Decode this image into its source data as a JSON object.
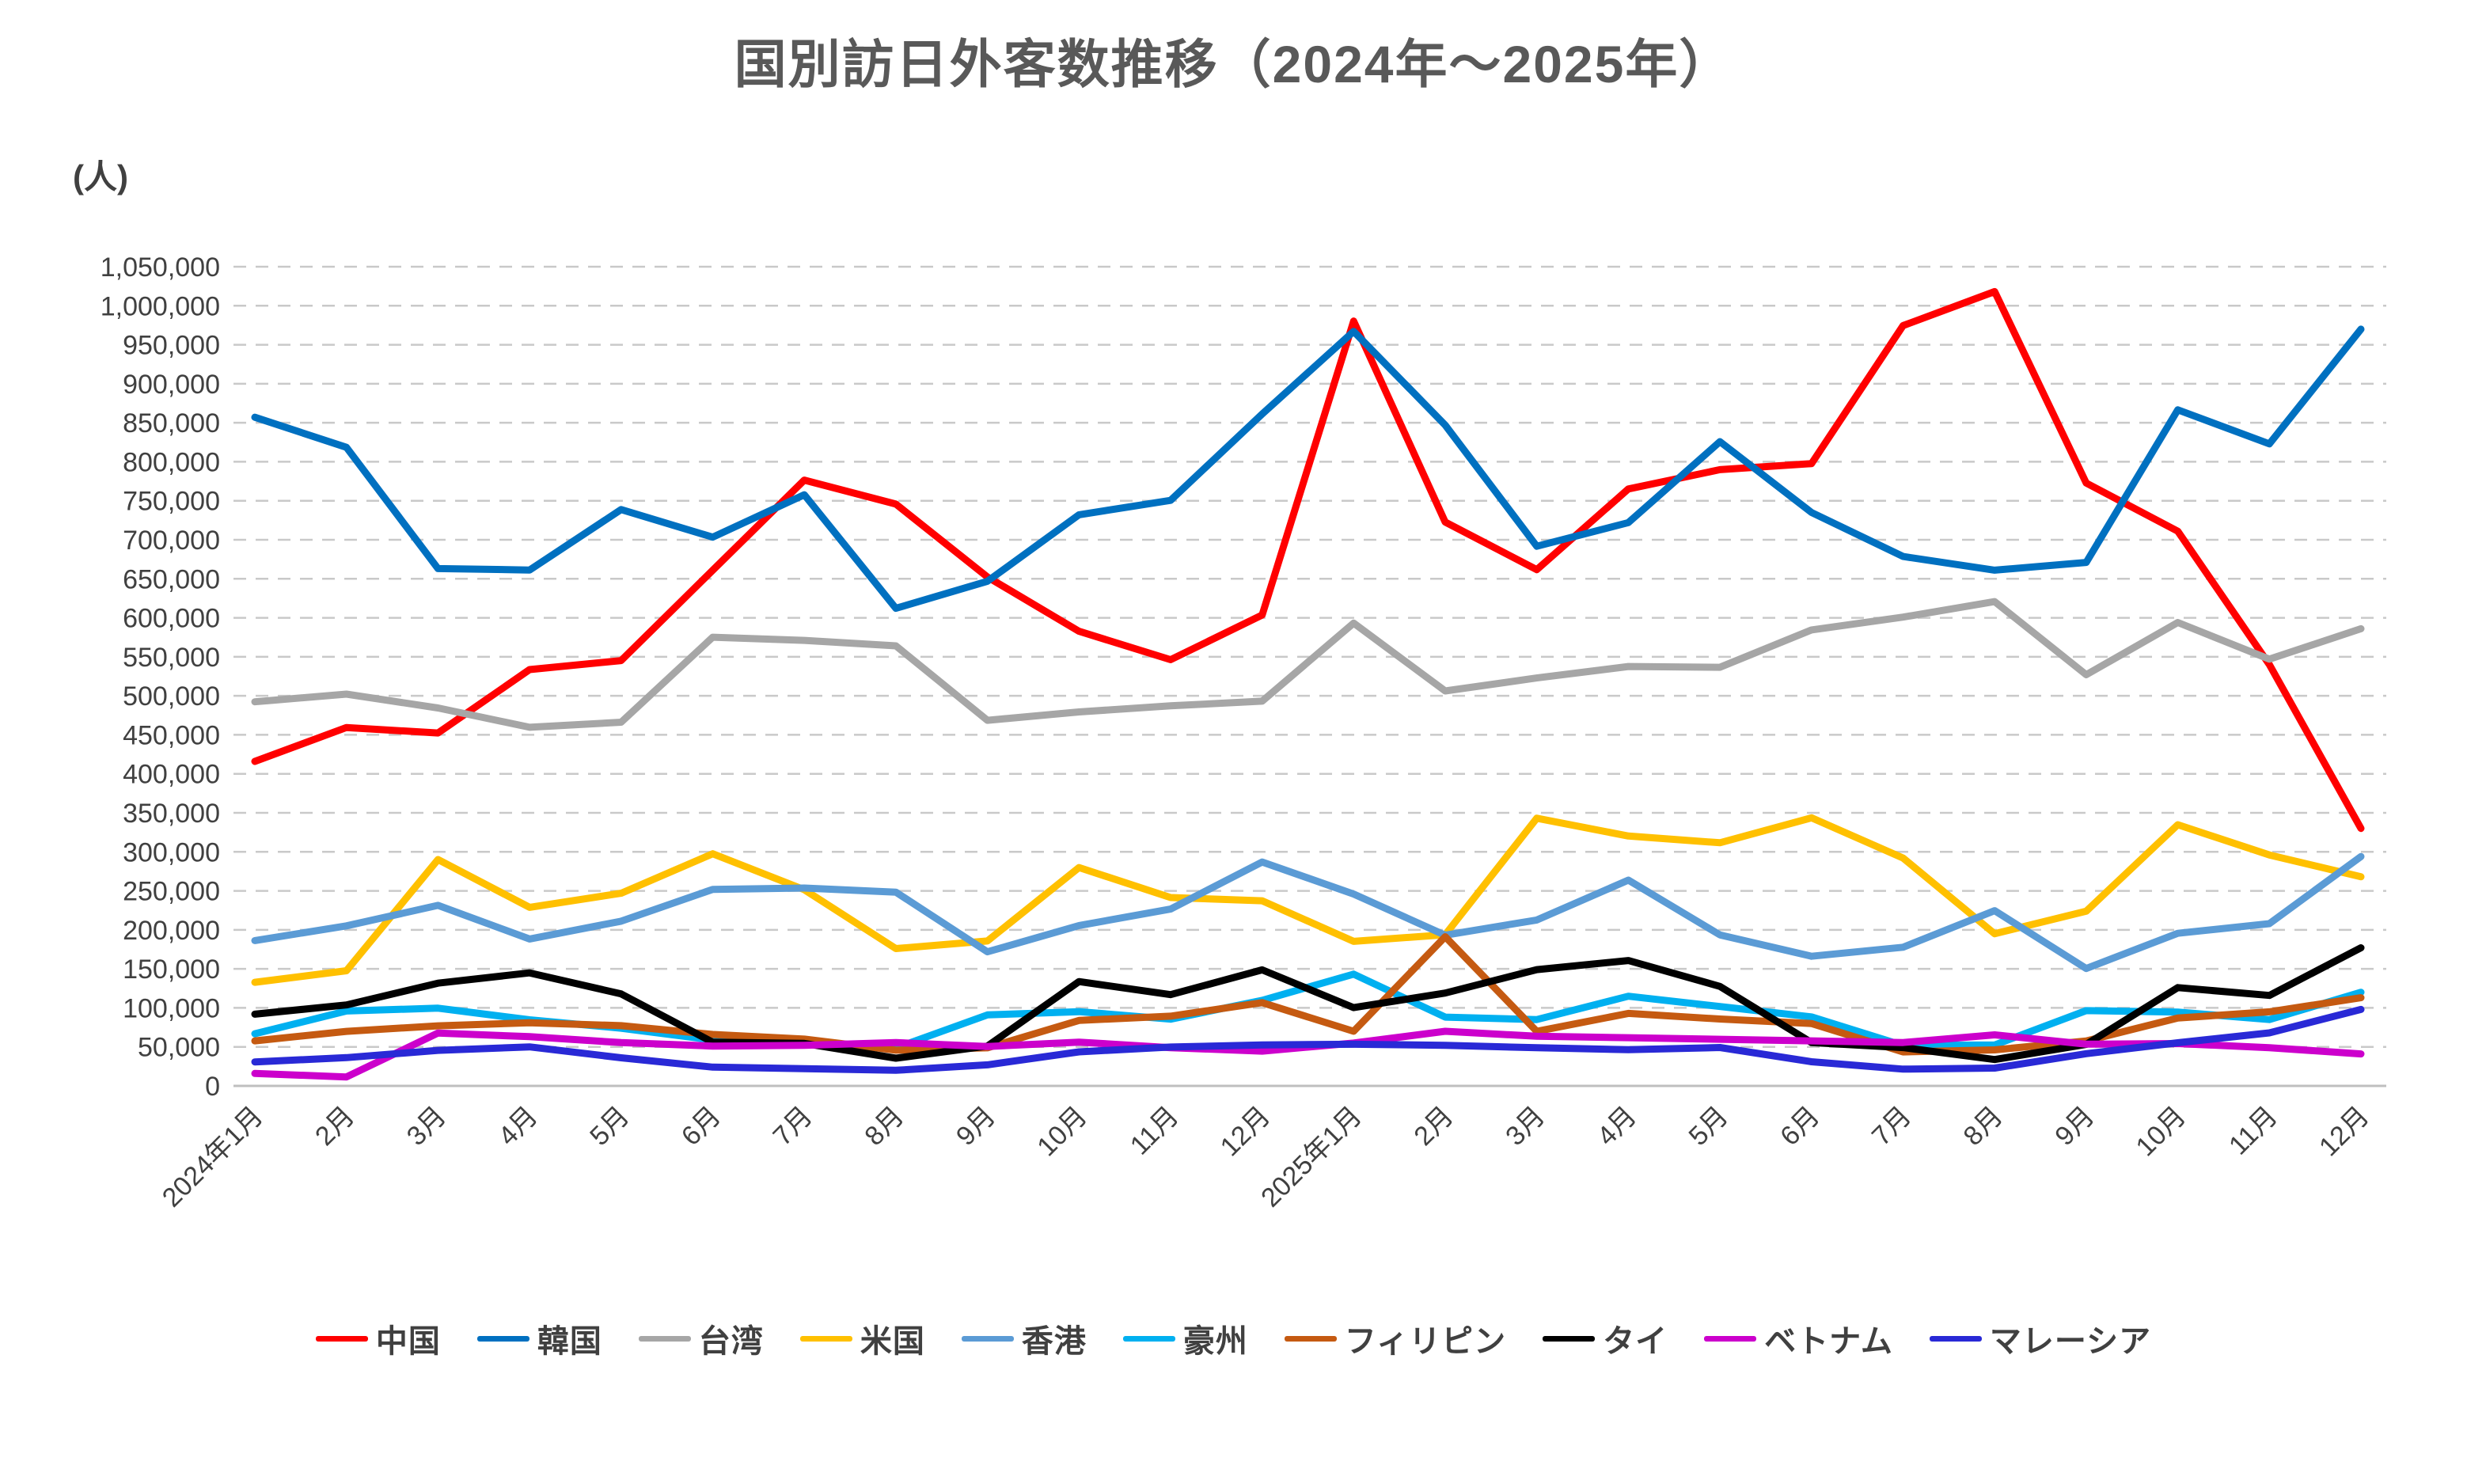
{
  "title": "国別訪日外客数推移（2024年～2025年）",
  "y_unit_label": "(人)",
  "chart_data": {
    "type": "line",
    "title": "国別訪日外客数推移（2024年～2025年）",
    "ylabel": "(人)",
    "xlabel": "",
    "ylim": [
      0,
      1050000
    ],
    "ytick_step": 50000,
    "grid": "horizontal-dashed",
    "legend_position": "bottom",
    "categories": [
      "2024年1月",
      "2月",
      "3月",
      "4月",
      "5月",
      "6月",
      "7月",
      "8月",
      "9月",
      "10月",
      "11月",
      "12月",
      "2025年1月",
      "2月",
      "3月",
      "4月",
      "5月",
      "6月",
      "7月",
      "8月",
      "9月",
      "10月",
      "11月",
      "12月"
    ],
    "series": [
      {
        "name": "中国",
        "color": "#FF0000",
        "values": [
          415900,
          459400,
          452400,
          533600,
          545200,
          660900,
          776500,
          745800,
          652300,
          582700,
          546300,
          603500,
          980300,
          722700,
          661700,
          765100,
          789900,
          797600,
          974500,
          1018100,
          772700,
          711000,
          540000,
          330000
        ]
      },
      {
        "name": "韓国",
        "color": "#0070C0",
        "values": [
          857000,
          818500,
          663100,
          661200,
          738800,
          703300,
          757700,
          612100,
          646800,
          732100,
          750500,
          861200,
          967100,
          847000,
          691700,
          722000,
          825800,
          735000,
          678600,
          661000,
          671000,
          866600,
          823000,
          970000
        ]
      },
      {
        "name": "台湾",
        "color": "#A6A6A6",
        "values": [
          492300,
          502200,
          484400,
          459700,
          466200,
          575100,
          571100,
          564100,
          468600,
          479300,
          487200,
          493100,
          593200,
          506200,
          522900,
          537600,
          536600,
          584500,
          600900,
          620800,
          527000,
          594000,
          547000,
          586000
        ]
      },
      {
        "name": "米国",
        "color": "#FFC000",
        "values": [
          132800,
          147600,
          290100,
          228900,
          246900,
          297600,
          251500,
          176000,
          185800,
          279900,
          241500,
          237300,
          185200,
          193800,
          343100,
          320300,
          311700,
          343600,
          292100,
          195000,
          223900,
          334800,
          296000,
          268000
        ]
      },
      {
        "name": "香港",
        "color": "#5B9BD5",
        "values": [
          186300,
          205100,
          231400,
          188300,
          211100,
          251900,
          253600,
          248300,
          171900,
          205500,
          226600,
          287000,
          245900,
          193200,
          212600,
          263800,
          193600,
          166200,
          177700,
          224600,
          150400,
          195600,
          208000,
          294000
        ]
      },
      {
        "name": "豪州",
        "color": "#00B0F0",
        "values": [
          66900,
          96000,
          99600,
          84700,
          74000,
          58900,
          55900,
          48700,
          91000,
          95200,
          85500,
          109700,
          143200,
          88200,
          85000,
          114900,
          101800,
          88500,
          51800,
          52500,
          96500,
          94700,
          85000,
          120000
        ]
      },
      {
        "name": "フィリピン",
        "color": "#C55A11",
        "values": [
          57700,
          69900,
          77000,
          81000,
          77200,
          65900,
          60000,
          45800,
          48800,
          83900,
          89400,
          106700,
          70000,
          191200,
          69900,
          92900,
          85700,
          79900,
          43500,
          46200,
          57600,
          86900,
          95000,
          113000
        ]
      },
      {
        "name": "タイ",
        "color": "#000000",
        "values": [
          91900,
          103800,
          131700,
          144900,
          117900,
          56000,
          54500,
          35500,
          51000,
          133700,
          117000,
          148700,
          100300,
          119000,
          149000,
          160700,
          127500,
          55500,
          49100,
          33800,
          53200,
          126000,
          116000,
          177000
        ]
      },
      {
        "name": "ベトナム",
        "color": "#CC00CC",
        "values": [
          15900,
          11500,
          67800,
          63100,
          55500,
          51000,
          52000,
          55500,
          50500,
          56100,
          49000,
          44500,
          54900,
          70000,
          63600,
          61800,
          59800,
          57700,
          55600,
          65400,
          53500,
          54300,
          49000,
          41000
        ]
      },
      {
        "name": "マレーシア",
        "color": "#2929D6",
        "values": [
          30700,
          36200,
          45600,
          50000,
          36000,
          24000,
          22000,
          20000,
          27000,
          43600,
          49800,
          52600,
          53400,
          52000,
          48900,
          46400,
          49200,
          30900,
          21500,
          22800,
          41300,
          55300,
          68000,
          98000
        ]
      }
    ]
  }
}
